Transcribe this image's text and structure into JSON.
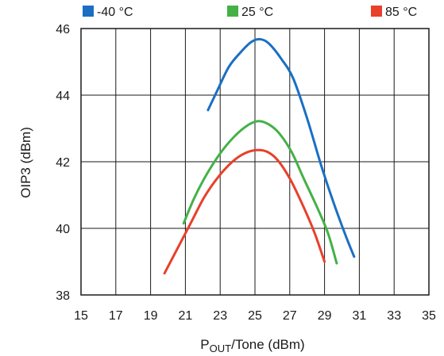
{
  "chart_data": {
    "type": "line",
    "xlabel": {
      "main": "P",
      "sub": "OUT",
      "rest": "/Tone (dBm)"
    },
    "ylabel": "OIP3 (dBm)",
    "xlim": [
      15,
      35
    ],
    "ylim": [
      38,
      46
    ],
    "x_ticks": [
      "15",
      "17",
      "19",
      "21",
      "23",
      "25",
      "27",
      "29",
      "31",
      "33",
      "35"
    ],
    "y_ticks": [
      "38",
      "40",
      "42",
      "44",
      "46"
    ],
    "grid": true,
    "legend_position": "top",
    "series": [
      {
        "name": "-40 °C",
        "color": "#1a6fc4",
        "points": [
          [
            22.3,
            43.55
          ],
          [
            22.8,
            44.1
          ],
          [
            23.5,
            44.85
          ],
          [
            24.2,
            45.3
          ],
          [
            24.8,
            45.6
          ],
          [
            25.3,
            45.68
          ],
          [
            25.8,
            45.55
          ],
          [
            26.5,
            45.1
          ],
          [
            27.2,
            44.5
          ],
          [
            28.0,
            43.3
          ],
          [
            28.8,
            41.9
          ],
          [
            29.5,
            40.8
          ],
          [
            30.2,
            39.8
          ],
          [
            30.7,
            39.15
          ]
        ]
      },
      {
        "name": "25 °C",
        "color": "#44b146",
        "points": [
          [
            20.9,
            40.15
          ],
          [
            21.5,
            40.9
          ],
          [
            22.2,
            41.6
          ],
          [
            23.0,
            42.25
          ],
          [
            23.8,
            42.75
          ],
          [
            24.6,
            43.1
          ],
          [
            25.2,
            43.22
          ],
          [
            25.8,
            43.12
          ],
          [
            26.4,
            42.85
          ],
          [
            27.1,
            42.3
          ],
          [
            27.8,
            41.5
          ],
          [
            28.6,
            40.6
          ],
          [
            29.2,
            39.85
          ],
          [
            29.7,
            38.95
          ]
        ]
      },
      {
        "name": "85 °C",
        "color": "#e8402a",
        "points": [
          [
            19.8,
            38.65
          ],
          [
            20.5,
            39.35
          ],
          [
            21.3,
            40.15
          ],
          [
            22.1,
            40.95
          ],
          [
            22.9,
            41.55
          ],
          [
            23.7,
            42.0
          ],
          [
            24.4,
            42.25
          ],
          [
            25.1,
            42.35
          ],
          [
            25.7,
            42.3
          ],
          [
            26.3,
            42.05
          ],
          [
            27.0,
            41.5
          ],
          [
            27.7,
            40.75
          ],
          [
            28.4,
            39.9
          ],
          [
            29.0,
            39.0
          ]
        ]
      }
    ]
  }
}
